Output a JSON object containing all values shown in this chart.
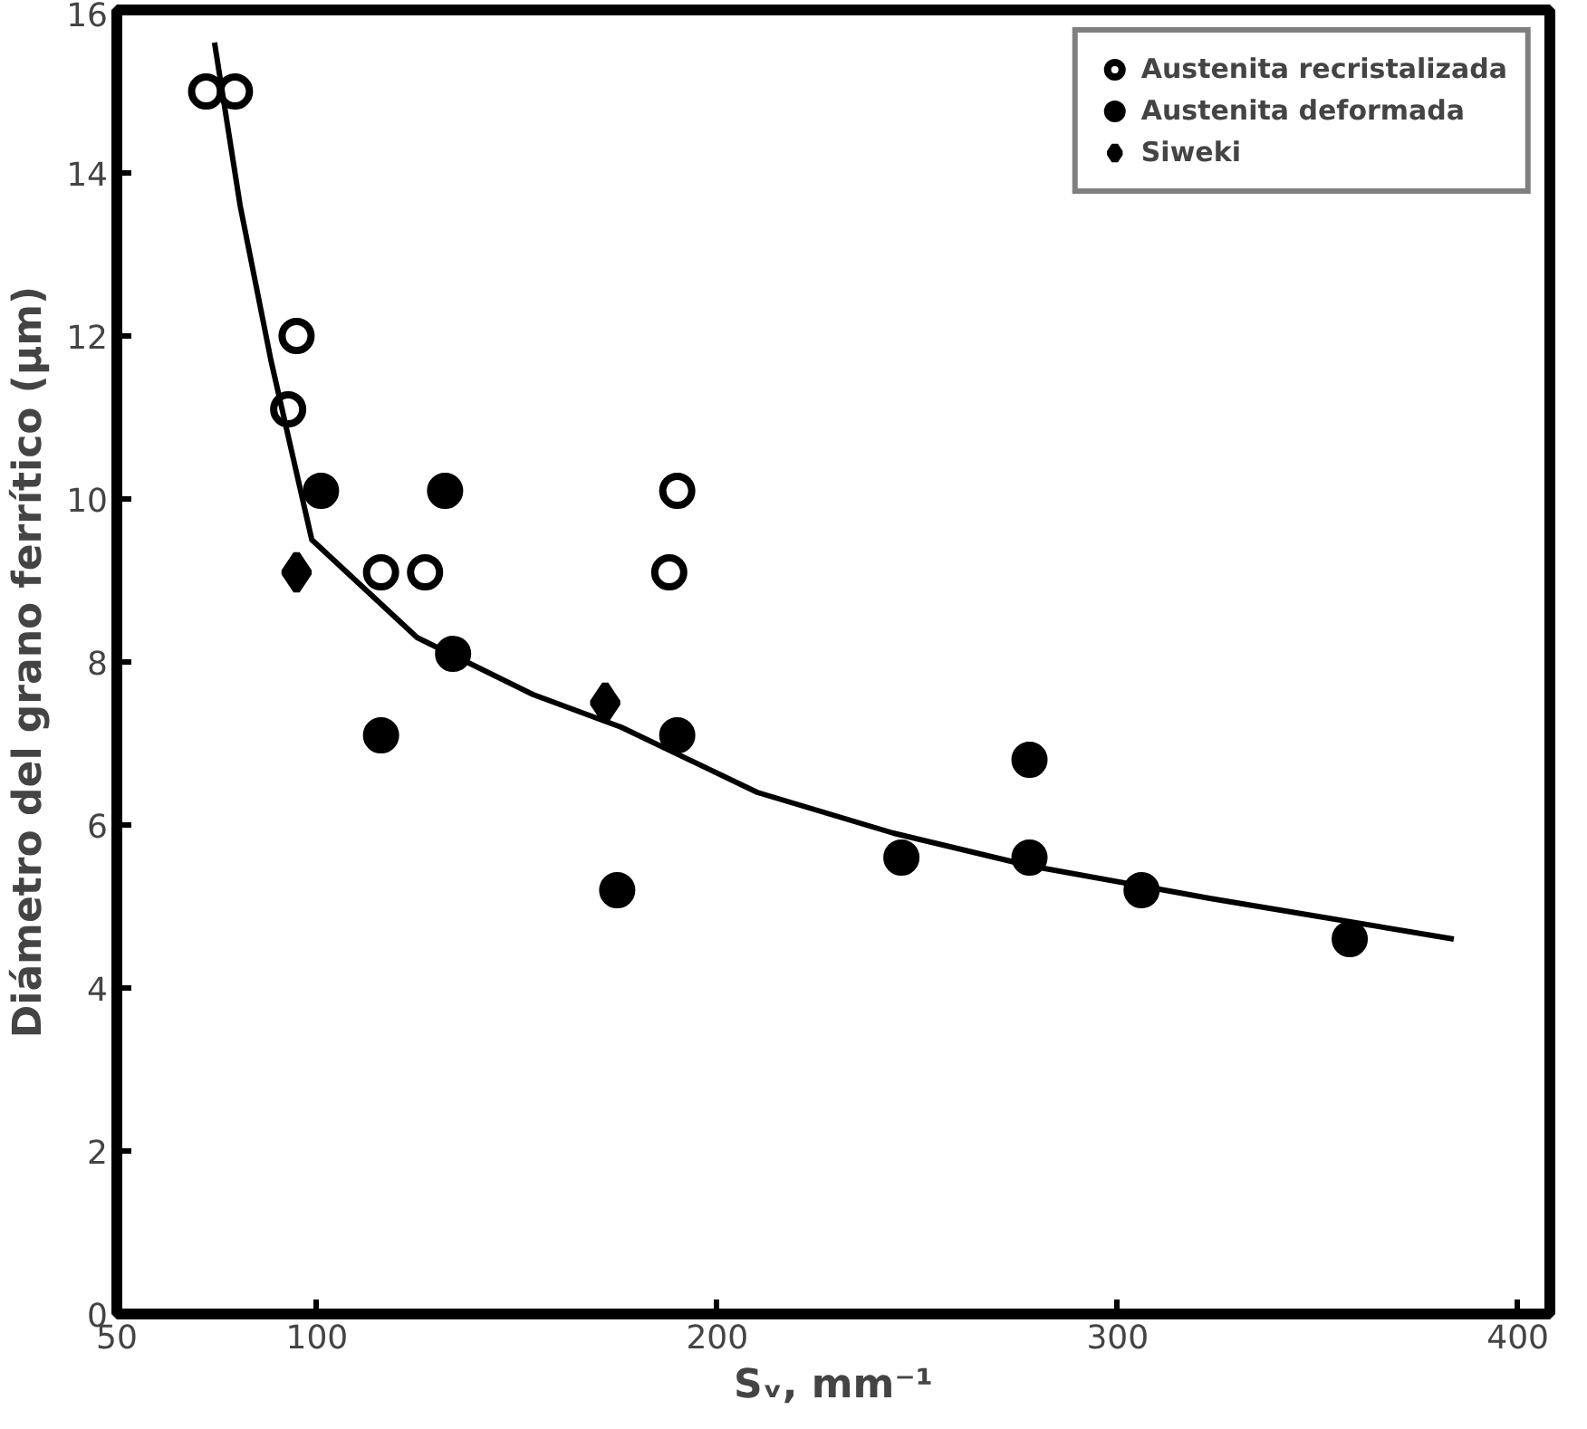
{
  "chart_data": {
    "type": "scatter",
    "xlabel": "Sᵥ, mm⁻¹",
    "ylabel": "Diámetro del grano ferrítico (µm)",
    "xlim": [
      50,
      408
    ],
    "xticks": [
      50,
      100,
      200,
      300,
      400
    ],
    "ylim": [
      0,
      16
    ],
    "yticks": [
      0,
      2,
      4,
      6,
      8,
      10,
      12,
      14,
      16
    ],
    "grid": false,
    "legend": "top right",
    "series": [
      {
        "name": "Austenita recristalizada",
        "color": "#ffffff",
        "marker": "circle",
        "x": [
          72.3,
          79.5,
          94.9,
          92.8,
          116,
          127,
          188,
          190
        ],
        "values": [
          15.0,
          15.0,
          12.0,
          11.1,
          9.1,
          9.1,
          9.1,
          10.1
        ]
      },
      {
        "name": "Austenita deformada",
        "color": "#000000",
        "marker": "circle",
        "x": [
          101,
          132,
          134,
          116,
          190,
          175,
          246,
          278,
          278,
          306,
          358
        ],
        "values": [
          10.1,
          10.1,
          8.1,
          7.1,
          7.1,
          5.2,
          5.6,
          5.6,
          6.8,
          5.2,
          4.6
        ]
      },
      {
        "name": "Siweki",
        "color": "#000000",
        "marker": "diamond",
        "x": [
          94.9,
          172
        ],
        "values": [
          9.1,
          7.5
        ]
      },
      {
        "type": "line",
        "color": "#000000",
        "line_style": "solid",
        "x": [
          74.4,
          80.8,
          88.5,
          98.7,
          125,
          154,
          176,
          210,
          244,
          278,
          323,
          384
        ],
        "values": [
          15.6,
          13.6,
          11.7,
          9.5,
          8.3,
          7.6,
          7.2,
          6.4,
          5.9,
          5.5,
          5.1,
          4.6
        ]
      }
    ]
  }
}
